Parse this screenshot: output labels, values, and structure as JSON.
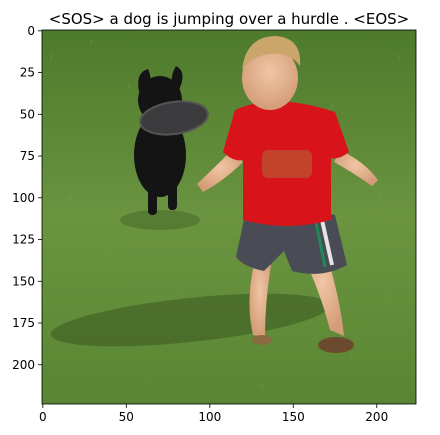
{
  "title": "<SOS> a dog is jumping over a hurdle . <EOS>",
  "image": {
    "description_icon": "photo-boy-running-with-black-dog-on-grass",
    "colors": {
      "grass": "#5f8a3a",
      "shirt": "#d8141a",
      "shorts": "#4a4c55",
      "dog": "#151515",
      "skin": "#e6b592",
      "hair": "#caa56c"
    }
  },
  "axes": {
    "xlim": [
      0,
      224
    ],
    "ylim": [
      224,
      0
    ],
    "xticks": [
      "0",
      "50",
      "100",
      "150",
      "200"
    ],
    "yticks": [
      "0",
      "25",
      "50",
      "75",
      "100",
      "125",
      "150",
      "175",
      "200"
    ],
    "xtick_values": [
      0,
      50,
      100,
      150,
      200
    ],
    "ytick_values": [
      0,
      25,
      50,
      75,
      100,
      125,
      150,
      175,
      200
    ]
  }
}
